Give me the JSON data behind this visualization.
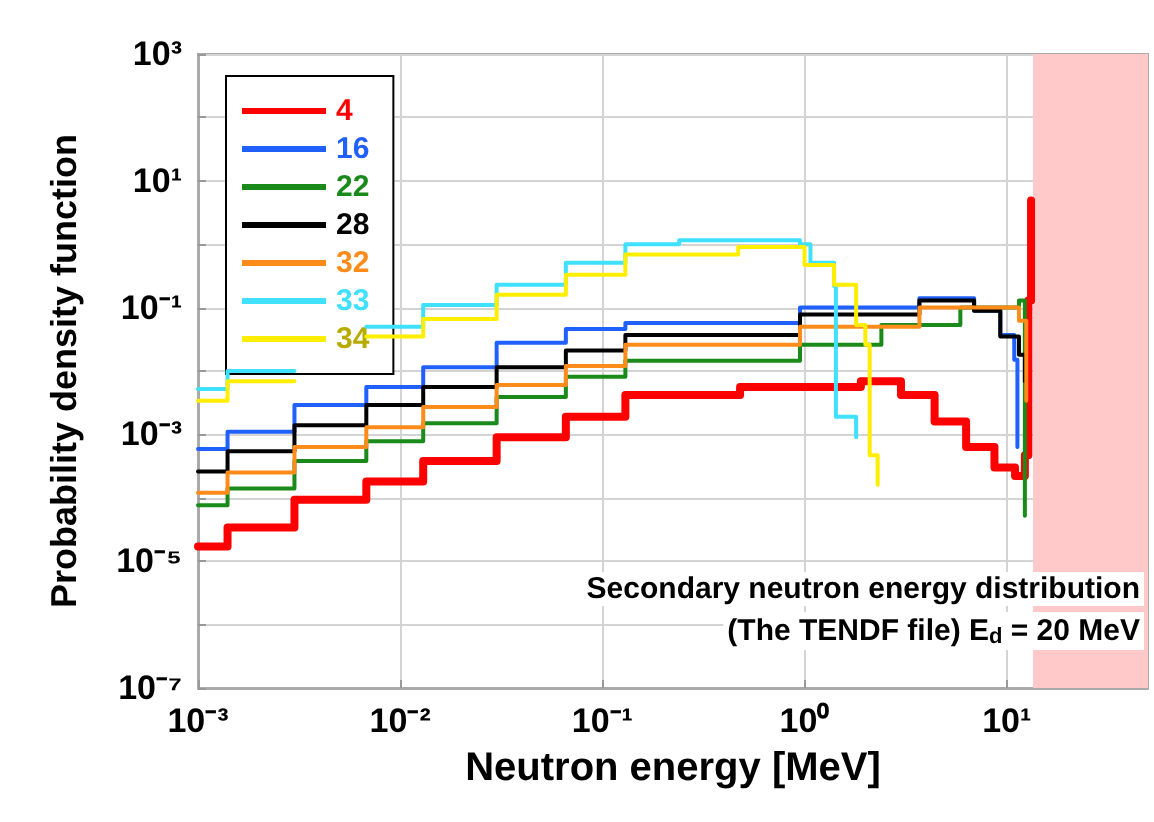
{
  "chart_data": {
    "type": "step",
    "xlabel": "Neutron energy [MeV]",
    "ylabel": "Probability density function",
    "log": "xy",
    "xlim": [
      0.001,
      50
    ],
    "ylim": [
      1e-07,
      1000
    ],
    "xticks": [
      {
        "value": 0.001,
        "label": "10⁻³"
      },
      {
        "value": 0.01,
        "label": "10⁻²"
      },
      {
        "value": 0.1,
        "label": "10⁻¹"
      },
      {
        "value": 1,
        "label": "10⁰"
      },
      {
        "value": 10,
        "label": "10¹"
      }
    ],
    "yticks": [
      {
        "value": 1e-07,
        "label": "10⁻⁷"
      },
      {
        "value": 1e-06,
        "label": null
      },
      {
        "value": 1e-05,
        "label": "10⁻⁵"
      },
      {
        "value": 0.0001,
        "label": null
      },
      {
        "value": 0.001,
        "label": "10⁻³"
      },
      {
        "value": 0.01,
        "label": null
      },
      {
        "value": 0.1,
        "label": "10⁻¹"
      },
      {
        "value": 1,
        "label": null
      },
      {
        "value": 10,
        "label": "10¹"
      },
      {
        "value": 100,
        "label": null
      },
      {
        "value": 1000,
        "label": "10³"
      }
    ],
    "grid": true,
    "legend": "top left",
    "marker": "none",
    "line_style": "solid",
    "bands": [
      {
        "axis": "x",
        "from": 13.5,
        "to": 50,
        "color": "#ffc9c9"
      }
    ],
    "annotations": [
      "Secondary neutron energy distribution",
      "(The TENDF file) E$_{d}$ = 20 MeV"
    ],
    "series": [
      {
        "name": "4",
        "color": "#ff0000",
        "x": [
          0.001,
          0.0014,
          0.003,
          0.0068,
          0.013,
          0.03,
          0.066,
          0.13,
          0.48,
          1.9,
          3.0,
          4.4,
          6.3,
          8.7,
          11,
          12.3,
          12.8,
          13.2
        ],
        "values": [
          1.7e-05,
          3.4e-05,
          9.3e-05,
          0.00018,
          0.00038,
          0.0009,
          0.0019,
          0.0042,
          0.0056,
          0.0069,
          0.0042,
          0.0016,
          0.00063,
          0.0003,
          0.00022,
          0.00047,
          0.13,
          4.9
        ]
      },
      {
        "name": "16",
        "color": "#2060ff",
        "x": [
          0.001,
          0.0014,
          0.003,
          0.0068,
          0.013,
          0.03,
          0.066,
          0.13,
          0.95,
          3.7,
          6.9,
          9.3,
          10.9,
          11.3
        ],
        "values": [
          0.00059,
          0.0011,
          0.0029,
          0.0056,
          0.0115,
          0.028,
          0.046,
          0.057,
          0.1,
          0.14,
          0.089,
          0.037,
          0.015,
          0.00063
        ]
      },
      {
        "name": "22",
        "color": "#1a8a1a",
        "x": [
          0.001,
          0.0014,
          0.003,
          0.0068,
          0.013,
          0.03,
          0.066,
          0.13,
          0.95,
          2.4,
          5.9,
          11.5,
          12.3
        ],
        "values": [
          7.6e-05,
          0.00014,
          0.00038,
          0.00078,
          0.0015,
          0.0039,
          0.0081,
          0.0145,
          0.026,
          0.053,
          0.1,
          0.13,
          5.2e-05
        ]
      },
      {
        "name": "28",
        "color": "#000000",
        "x": [
          0.001,
          0.0014,
          0.003,
          0.0068,
          0.013,
          0.03,
          0.066,
          0.13,
          0.95,
          3.7,
          6.9,
          9.3,
          11.5,
          12.3
        ],
        "values": [
          0.00026,
          0.00054,
          0.0014,
          0.0029,
          0.0056,
          0.0115,
          0.021,
          0.037,
          0.078,
          0.13,
          0.089,
          0.035,
          0.018,
          0.0069
        ]
      },
      {
        "name": "32",
        "color": "#ff8c1a",
        "x": [
          0.001,
          0.0014,
          0.003,
          0.0068,
          0.013,
          0.03,
          0.066,
          0.13,
          0.95,
          3.7,
          9.3,
          11.5,
          12.5
        ],
        "values": [
          0.00012,
          0.00025,
          0.00063,
          0.0013,
          0.0027,
          0.006,
          0.012,
          0.026,
          0.05,
          0.1,
          0.1,
          0.062,
          0.0034
        ]
      },
      {
        "name": "33",
        "color": "#40e0ff",
        "x": [
          0.001,
          0.0014,
          0.003,
          0.0068,
          0.013,
          0.03,
          0.066,
          0.13,
          0.24,
          0.95,
          1.07,
          1.4,
          1.43,
          1.8
        ],
        "values": [
          0.0052,
          0.01,
          null,
          0.05,
          0.11,
          0.23,
          0.51,
          1.0,
          1.15,
          1.0,
          0.51,
          0.22,
          0.0019,
          0.0009
        ]
      },
      {
        "name": "34",
        "color": "#ffee00",
        "x": [
          0.001,
          0.0014,
          0.003,
          0.0068,
          0.013,
          0.03,
          0.066,
          0.13,
          0.47,
          1.0,
          1.4,
          1.8,
          2.0,
          2.1,
          2.3
        ],
        "values": [
          0.0034,
          0.0069,
          null,
          0.035,
          0.066,
          0.16,
          0.33,
          0.69,
          0.9,
          0.47,
          0.23,
          0.053,
          0.026,
          0.00047,
          0.00016
        ]
      }
    ]
  }
}
